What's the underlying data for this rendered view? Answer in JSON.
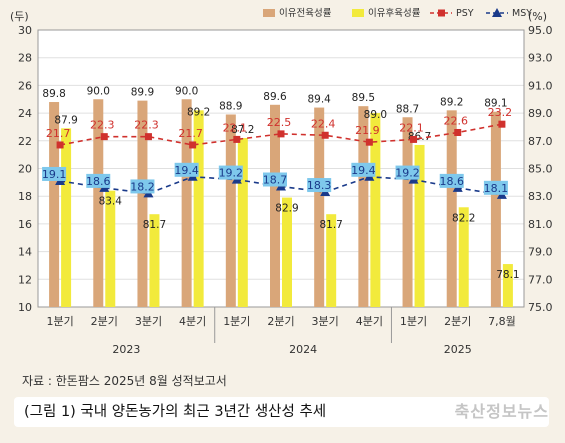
{
  "chart_data": {
    "type": "bar",
    "y_left_unit": "(두)",
    "y_right_unit": "(%)",
    "ylim_left": [
      10,
      30
    ],
    "ylim_right": [
      75.0,
      95.0
    ],
    "yticks_left": [
      "10",
      "12",
      "14",
      "16",
      "18",
      "20",
      "22",
      "24",
      "26",
      "28",
      "30"
    ],
    "yticks_right": [
      "75.0",
      "77.0",
      "79.0",
      "81.0",
      "83.0",
      "85.0",
      "87.0",
      "89.0",
      "91.0",
      "93.0",
      "95.0"
    ],
    "categories": [
      "1분기",
      "2분기",
      "3분기",
      "4분기",
      "1분기",
      "2분기",
      "3분기",
      "4분기",
      "1분기",
      "2분기",
      "7,8월"
    ],
    "year_labels": [
      "2023",
      "2024",
      "2025"
    ],
    "year_groups": [
      [
        0,
        3
      ],
      [
        4,
        7
      ],
      [
        8,
        10
      ]
    ],
    "series": [
      {
        "name": "이유전육성률",
        "axis": "right",
        "kind": "bar",
        "color": "#d9a679",
        "values": [
          89.8,
          90.0,
          89.9,
          90.0,
          88.9,
          89.6,
          89.4,
          89.5,
          88.7,
          89.2,
          89.1
        ]
      },
      {
        "name": "이유후육성률",
        "axis": "right",
        "kind": "bar",
        "color": "#f2ea3c",
        "values": [
          87.9,
          83.4,
          81.7,
          89.2,
          87.2,
          82.9,
          81.7,
          89.0,
          86.7,
          82.2,
          78.1
        ]
      },
      {
        "name": "PSY",
        "axis": "left",
        "kind": "line",
        "color": "#d0312d",
        "values": [
          21.7,
          22.3,
          22.3,
          21.7,
          22.1,
          22.5,
          22.4,
          21.9,
          22.1,
          22.6,
          23.2
        ]
      },
      {
        "name": "MSY",
        "axis": "left",
        "kind": "line",
        "color": "#1a3a8a",
        "values": [
          19.1,
          18.6,
          18.2,
          19.4,
          19.2,
          18.7,
          18.3,
          19.4,
          19.2,
          18.6,
          18.1
        ]
      }
    ]
  },
  "source_text": "자료 : 한돈팜스 2025년 8월 성적보고서",
  "caption_text": "(그림 1) 국내 양돈농가의 최근 3년간 생산성 추세",
  "watermark_text": "축산정보뉴스"
}
